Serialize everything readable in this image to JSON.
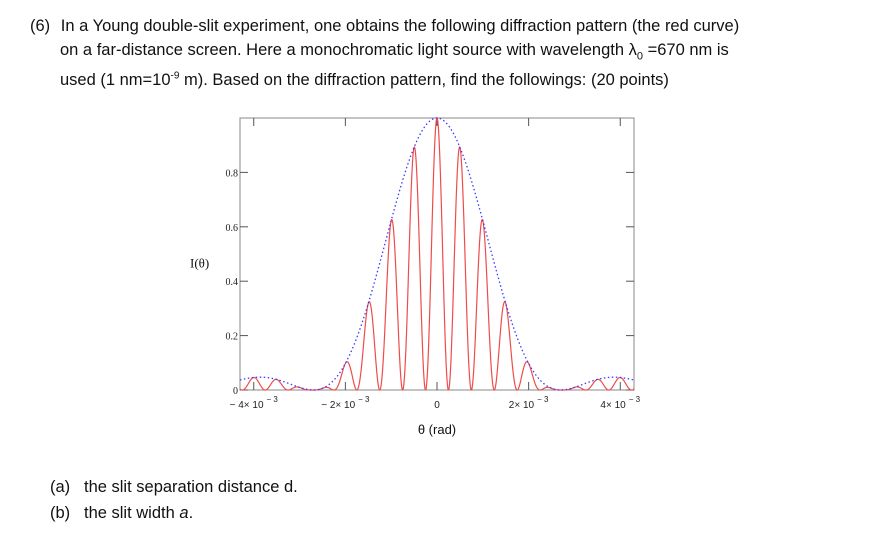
{
  "problem": {
    "number": "(6)",
    "line1": "In a Young double-slit experiment, one obtains the following diffraction pattern (the red curve)",
    "line2_pre": "on a far-distance screen. Here a monochromatic light source with wavelength ",
    "lambda_symbol": "λ",
    "lambda_sub": "0",
    "line2_post": " =670 nm is",
    "line3_pre": "used (1 nm=10",
    "line3_sup": "-9",
    "line3_post": " m). Based on the diffraction pattern, find the followings: (20 points)"
  },
  "questions": [
    {
      "label": "(a)",
      "text_pre": "the slit separation distance d.",
      "italic": ""
    },
    {
      "label": "(b)",
      "text_pre": "the slit width ",
      "italic": "a",
      "text_post": "."
    }
  ],
  "chart_data": {
    "type": "line",
    "ylabel": "I(θ)",
    "xlabel": "θ (rad)",
    "xlim": [
      -0.0043,
      0.0043
    ],
    "ylim": [
      0,
      1.0
    ],
    "x_ticks": [
      {
        "value": -0.004,
        "mant": "− 4× 10",
        "exp": "− 3"
      },
      {
        "value": -0.002,
        "mant": "− 2× 10",
        "exp": "− 3"
      },
      {
        "value": 0,
        "mant": "0",
        "exp": ""
      },
      {
        "value": 0.002,
        "mant": "2× 10",
        "exp": "− 3"
      },
      {
        "value": 0.004,
        "mant": "4× 10",
        "exp": "− 3"
      }
    ],
    "y_ticks": [
      {
        "value": 0,
        "label": "0"
      },
      {
        "value": 0.2,
        "label": "0.2"
      },
      {
        "value": 0.4,
        "label": "0.4"
      },
      {
        "value": 0.6,
        "label": "0.6"
      },
      {
        "value": 0.8,
        "label": "0.8"
      }
    ],
    "series": [
      {
        "style": "solid",
        "color": "#f04b4b",
        "fringe_spacing": 0.0005,
        "first_min": 0.0027
      },
      {
        "style": "dotted",
        "color": "#3b3bff",
        "first_min": 0.0027
      }
    ]
  }
}
